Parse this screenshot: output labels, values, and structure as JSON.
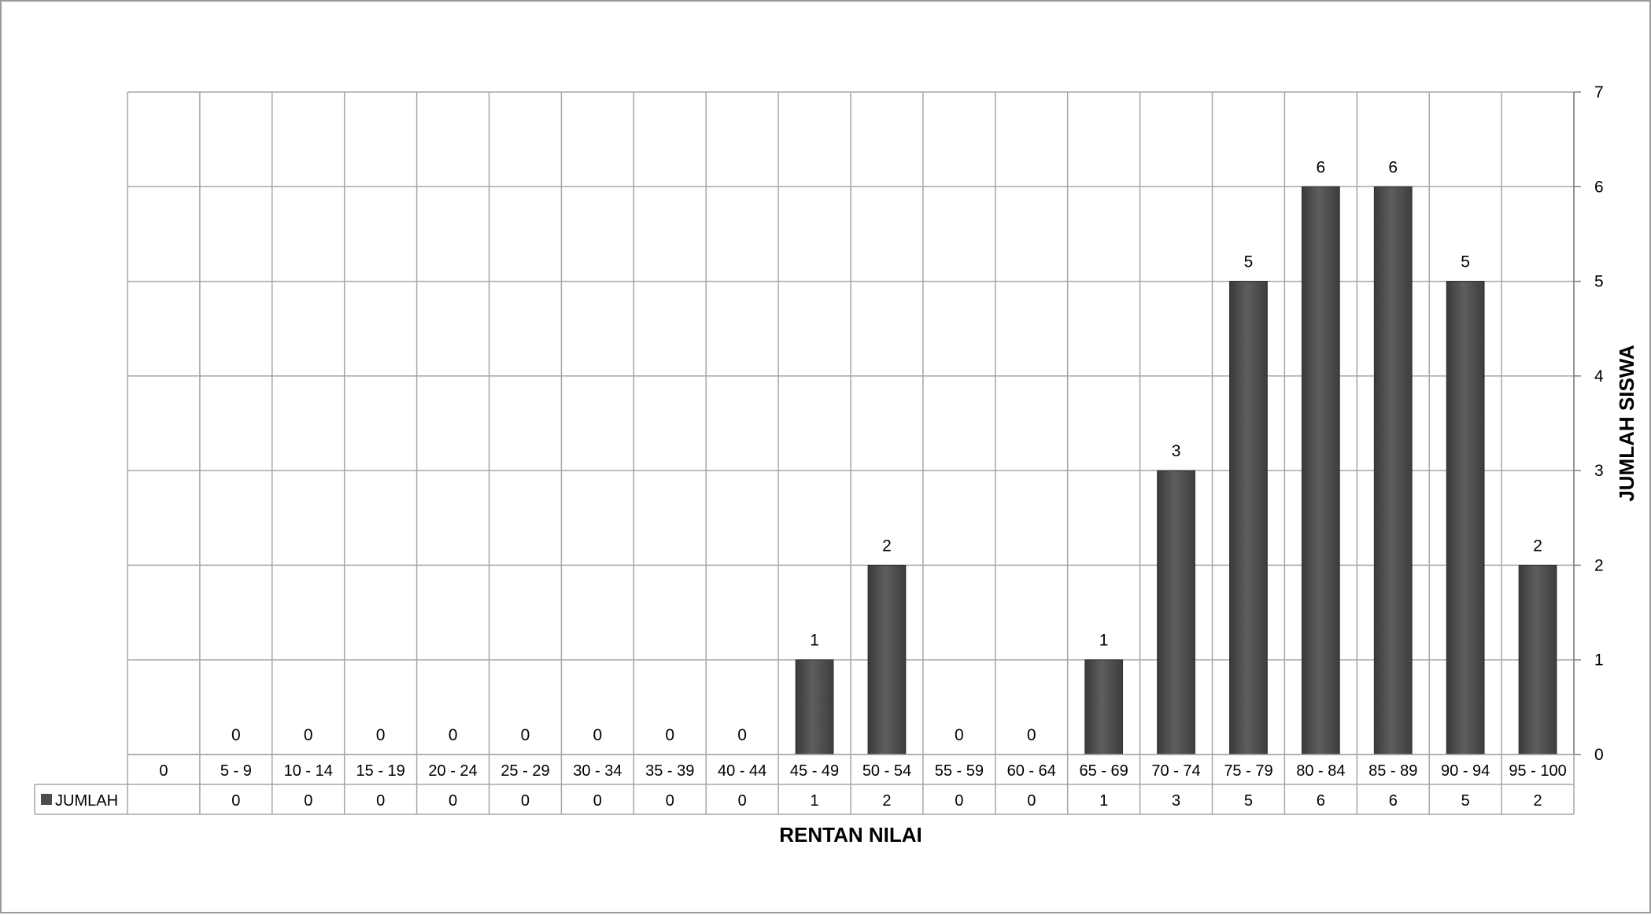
{
  "chart_data": {
    "type": "bar",
    "categories": [
      "0",
      "5 - 9",
      "10 - 14",
      "15 - 19",
      "20 - 24",
      "25 - 29",
      "30 - 34",
      "35 - 39",
      "40 - 44",
      "45 - 49",
      "50 - 54",
      "55 - 59",
      "60 - 64",
      "65 - 69",
      "70 - 74",
      "75 - 79",
      "80 - 84",
      "85 - 89",
      "90 - 94",
      "95 - 100"
    ],
    "series": [
      {
        "name": "JUMLAH",
        "values": [
          null,
          0,
          0,
          0,
          0,
          0,
          0,
          0,
          0,
          1,
          2,
          0,
          0,
          1,
          3,
          5,
          6,
          6,
          5,
          2
        ],
        "color": "#4d4d4d"
      }
    ],
    "xlabel": "RENTAN NILAI",
    "ylabel": "JUMLAH SISWA",
    "ylim": [
      0,
      7
    ],
    "yticks": [
      0,
      1,
      2,
      3,
      4,
      5,
      6,
      7
    ],
    "y_axis_side": "right",
    "grid": true,
    "data_table": true,
    "data_labels": true
  }
}
